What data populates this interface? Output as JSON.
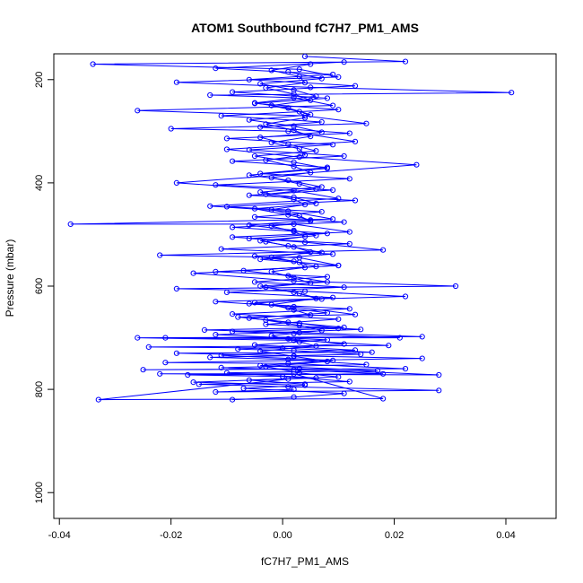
{
  "chart_data": {
    "type": "scatter",
    "title": "ATOM1 Southbound fC7H7_PM1_AMS",
    "xlabel": "fC7H7_PM1_AMS",
    "ylabel": "Pressure (mbar)",
    "xlim": [
      -0.041,
      0.049
    ],
    "ylim": [
      1050,
      150
    ],
    "y_reversed": true,
    "xticks": [
      -0.04,
      -0.02,
      0.0,
      0.02,
      0.04
    ],
    "xtick_labels": [
      "-0.04",
      "-0.02",
      "0.00",
      "0.02",
      "0.04"
    ],
    "yticks": [
      200,
      400,
      600,
      800,
      1000
    ],
    "ytick_labels": [
      "200",
      "400",
      "600",
      "800",
      "1000"
    ],
    "grid": false,
    "legend": "none",
    "series_color": "#0000ff",
    "series": [
      {
        "points": [
          [
            0.001,
            780
          ],
          [
            -0.033,
            820
          ],
          [
            0.018,
            818
          ],
          [
            0.002,
            770
          ],
          [
            -0.022,
            770
          ],
          [
            0.028,
            772
          ],
          [
            0.003,
            760
          ],
          [
            -0.025,
            762
          ],
          [
            0.022,
            760
          ],
          [
            0.001,
            750
          ],
          [
            -0.021,
            748
          ],
          [
            0.025,
            740
          ],
          [
            0.002,
            735
          ],
          [
            -0.019,
            730
          ],
          [
            0.016,
            728
          ],
          [
            0.0,
            720
          ],
          [
            -0.024,
            718
          ],
          [
            0.019,
            715
          ],
          [
            0.002,
            705
          ],
          [
            -0.026,
            700
          ],
          [
            0.025,
            698
          ],
          [
            0.003,
            690
          ],
          [
            -0.014,
            685
          ],
          [
            0.011,
            680
          ],
          [
            0.001,
            670
          ],
          [
            -0.008,
            660
          ],
          [
            0.013,
            655
          ],
          [
            0.002,
            640
          ],
          [
            -0.012,
            630
          ],
          [
            0.022,
            620
          ],
          [
            0.004,
            610
          ],
          [
            -0.019,
            605
          ],
          [
            0.031,
            600
          ],
          [
            0.002,
            590
          ],
          [
            -0.016,
            575
          ],
          [
            0.01,
            560
          ],
          [
            0.003,
            545
          ],
          [
            -0.022,
            540
          ],
          [
            0.018,
            530
          ],
          [
            0.004,
            515
          ],
          [
            -0.009,
            505
          ],
          [
            0.012,
            495
          ],
          [
            0.002,
            480
          ],
          [
            -0.038,
            480
          ],
          [
            0.009,
            470
          ],
          [
            0.001,
            455
          ],
          [
            -0.013,
            445
          ],
          [
            0.01,
            430
          ],
          [
            0.002,
            415
          ],
          [
            -0.019,
            400
          ],
          [
            0.024,
            365
          ],
          [
            0.003,
            350
          ],
          [
            -0.01,
            335
          ],
          [
            0.013,
            320
          ],
          [
            0.001,
            300
          ],
          [
            -0.02,
            295
          ],
          [
            0.015,
            285
          ],
          [
            0.004,
            270
          ],
          [
            -0.026,
            260
          ],
          [
            0.009,
            250
          ],
          [
            0.002,
            235
          ],
          [
            -0.013,
            230
          ],
          [
            0.041,
            225
          ],
          [
            0.005,
            215
          ],
          [
            -0.019,
            205
          ],
          [
            0.01,
            195
          ],
          [
            0.003,
            180
          ],
          [
            -0.034,
            170
          ],
          [
            0.022,
            165
          ],
          [
            0.004,
            155
          ]
        ]
      },
      {
        "points": [
          [
            0.002,
            800
          ],
          [
            -0.012,
            805
          ],
          [
            0.028,
            802
          ],
          [
            0.001,
            795
          ],
          [
            -0.015,
            790
          ],
          [
            0.012,
            785
          ],
          [
            0.0,
            775
          ],
          [
            -0.017,
            772
          ],
          [
            0.018,
            770
          ],
          [
            0.002,
            762
          ],
          [
            -0.011,
            758
          ],
          [
            0.015,
            752
          ],
          [
            0.001,
            742
          ],
          [
            -0.013,
            738
          ],
          [
            0.014,
            732
          ],
          [
            0.002,
            725
          ],
          [
            -0.008,
            722
          ],
          [
            0.011,
            712
          ],
          [
            0.001,
            702
          ],
          [
            -0.021,
            700
          ],
          [
            0.021,
            700
          ],
          [
            0.002,
            692
          ],
          [
            -0.009,
            688
          ],
          [
            0.01,
            682
          ],
          [
            0.003,
            672
          ],
          [
            -0.006,
            662
          ],
          [
            0.008,
            652
          ],
          [
            0.001,
            642
          ],
          [
            -0.005,
            632
          ],
          [
            0.007,
            625
          ],
          [
            0.002,
            612
          ],
          [
            -0.004,
            600
          ],
          [
            0.008,
            592
          ],
          [
            0.001,
            580
          ],
          [
            -0.007,
            570
          ],
          [
            0.006,
            562
          ],
          [
            0.002,
            552
          ],
          [
            -0.005,
            542
          ],
          [
            0.007,
            535
          ],
          [
            0.001,
            522
          ],
          [
            -0.004,
            512
          ],
          [
            0.006,
            502
          ],
          [
            0.002,
            492
          ],
          [
            -0.006,
            482
          ],
          [
            0.005,
            472
          ],
          [
            0.001,
            462
          ],
          [
            -0.005,
            450
          ],
          [
            0.006,
            440
          ],
          [
            0.002,
            428
          ],
          [
            -0.004,
            418
          ],
          [
            0.007,
            408
          ],
          [
            0.001,
            395
          ],
          [
            -0.006,
            385
          ],
          [
            0.008,
            372
          ],
          [
            0.002,
            360
          ],
          [
            -0.005,
            348
          ],
          [
            0.006,
            338
          ],
          [
            0.001,
            325
          ],
          [
            -0.004,
            312
          ],
          [
            0.007,
            302
          ],
          [
            0.002,
            290
          ],
          [
            -0.006,
            278
          ],
          [
            0.005,
            268
          ],
          [
            0.001,
            255
          ],
          [
            -0.005,
            245
          ],
          [
            0.006,
            232
          ],
          [
            0.002,
            220
          ],
          [
            -0.004,
            208
          ],
          [
            0.007,
            198
          ],
          [
            0.001,
            185
          ]
        ]
      },
      {
        "points": [
          [
            0.004,
            790
          ],
          [
            -0.006,
            782
          ],
          [
            0.01,
            776
          ],
          [
            0.003,
            768
          ],
          [
            -0.003,
            756
          ],
          [
            0.008,
            746
          ],
          [
            0.002,
            736
          ],
          [
            -0.004,
            726
          ],
          [
            0.006,
            716
          ],
          [
            0.003,
            708
          ],
          [
            -0.002,
            696
          ],
          [
            0.007,
            686
          ],
          [
            0.003,
            676
          ],
          [
            -0.003,
            666
          ],
          [
            0.005,
            656
          ],
          [
            0.002,
            646
          ],
          [
            -0.002,
            636
          ],
          [
            0.006,
            624
          ],
          [
            0.003,
            614
          ],
          [
            -0.003,
            602
          ],
          [
            0.005,
            594
          ],
          [
            0.002,
            584
          ],
          [
            -0.002,
            572
          ],
          [
            0.004,
            564
          ],
          [
            0.003,
            554
          ],
          [
            -0.002,
            544
          ],
          [
            0.005,
            534
          ],
          [
            0.002,
            524
          ],
          [
            -0.003,
            514
          ],
          [
            0.004,
            504
          ],
          [
            0.002,
            494
          ],
          [
            -0.002,
            484
          ],
          [
            0.005,
            474
          ],
          [
            0.003,
            464
          ],
          [
            -0.002,
            452
          ],
          [
            0.004,
            442
          ],
          [
            0.002,
            432
          ],
          [
            -0.003,
            422
          ],
          [
            0.006,
            412
          ],
          [
            0.003,
            402
          ],
          [
            -0.002,
            390
          ],
          [
            0.005,
            380
          ],
          [
            0.002,
            368
          ],
          [
            -0.003,
            356
          ],
          [
            0.004,
            346
          ],
          [
            0.003,
            334
          ],
          [
            -0.002,
            322
          ],
          [
            0.005,
            310
          ],
          [
            0.002,
            298
          ],
          [
            -0.003,
            286
          ],
          [
            0.004,
            274
          ],
          [
            0.003,
            262
          ],
          [
            -0.002,
            250
          ],
          [
            0.005,
            240
          ],
          [
            0.002,
            228
          ],
          [
            -0.003,
            216
          ],
          [
            0.004,
            206
          ],
          [
            0.003,
            194
          ],
          [
            -0.002,
            182
          ],
          [
            0.005,
            170
          ]
        ]
      },
      {
        "points": [
          [
            -0.009,
            820
          ],
          [
            0.002,
            815
          ],
          [
            0.011,
            808
          ],
          [
            -0.007,
            798
          ],
          [
            0.004,
            792
          ],
          [
            -0.016,
            786
          ],
          [
            0.006,
            778
          ],
          [
            -0.01,
            768
          ],
          [
            0.017,
            764
          ],
          [
            -0.004,
            754
          ],
          [
            0.009,
            744
          ],
          [
            -0.011,
            734
          ],
          [
            0.013,
            724
          ],
          [
            -0.005,
            714
          ],
          [
            0.008,
            704
          ],
          [
            -0.012,
            694
          ],
          [
            0.014,
            684
          ],
          [
            -0.003,
            674
          ],
          [
            0.01,
            664
          ],
          [
            -0.009,
            654
          ],
          [
            0.012,
            644
          ],
          [
            -0.006,
            634
          ],
          [
            0.009,
            622
          ],
          [
            -0.01,
            612
          ],
          [
            0.011,
            602
          ],
          [
            -0.005,
            592
          ],
          [
            0.008,
            582
          ],
          [
            -0.012,
            572
          ],
          [
            0.01,
            560
          ],
          [
            -0.004,
            548
          ],
          [
            0.009,
            538
          ],
          [
            -0.011,
            528
          ],
          [
            0.012,
            518
          ],
          [
            -0.006,
            508
          ],
          [
            0.008,
            498
          ],
          [
            -0.009,
            486
          ],
          [
            0.011,
            476
          ],
          [
            -0.005,
            466
          ],
          [
            0.007,
            456
          ],
          [
            -0.01,
            446
          ],
          [
            0.013,
            434
          ],
          [
            -0.006,
            424
          ],
          [
            0.009,
            414
          ],
          [
            -0.012,
            404
          ],
          [
            0.012,
            392
          ],
          [
            -0.004,
            382
          ],
          [
            0.008,
            370
          ],
          [
            -0.009,
            358
          ],
          [
            0.011,
            348
          ],
          [
            -0.006,
            336
          ],
          [
            0.009,
            326
          ],
          [
            -0.01,
            314
          ],
          [
            0.012,
            304
          ],
          [
            -0.004,
            292
          ],
          [
            0.007,
            282
          ],
          [
            -0.011,
            270
          ],
          [
            0.01,
            258
          ],
          [
            -0.005,
            246
          ],
          [
            0.008,
            236
          ],
          [
            -0.009,
            224
          ],
          [
            0.013,
            212
          ],
          [
            -0.006,
            200
          ],
          [
            0.009,
            190
          ],
          [
            -0.012,
            178
          ],
          [
            0.011,
            166
          ]
        ]
      }
    ]
  }
}
